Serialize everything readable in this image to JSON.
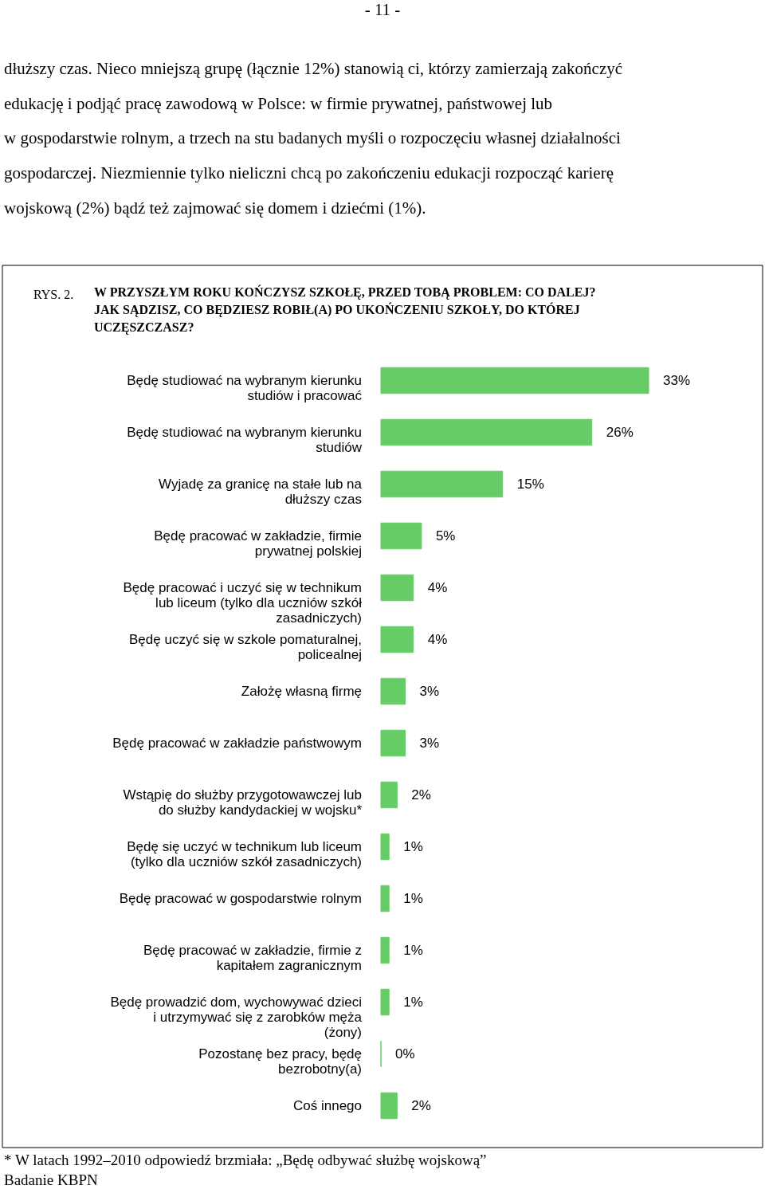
{
  "chart_data": {
    "type": "bar",
    "orientation": "horizontal",
    "color": "#66cc66",
    "title": "W PRZYSZŁYM ROKU KOŃCZYSZ SZKOŁĘ, PRZED TOBĄ PROBLEM: CO DALEJ? JAK SĄDZISZ, CO BĘDZIESZ ROBIŁ(A) PO UKOŃCZENIU SZKOŁY, DO KTÓREJ UCZĘSZCZASZ?",
    "categories": [
      "Będę studiować na wybranym kierunku studiów i pracować",
      "Będę studiować na wybranym kierunku studiów",
      "Wyjadę za granicę na stałe lub na dłuższy czas",
      "Będę pracować w zakładzie, firmie prywatnej polskiej",
      "Będę pracować i uczyć się w technikum lub liceum (tylko dla uczniów szkół zasadniczych)",
      "Będę uczyć się w szkole pomaturalnej, policealnej",
      "Założę własną firmę",
      "Będę pracować w zakładzie państwowym",
      "Wstąpię do służby przygotowawczej lub do służby kandydackiej w wojsku*",
      "Będę się uczyć w technikum  lub liceum (tylko dla uczniów szkół zasadniczych)",
      "Będę pracować w gospodarstwie rolnym",
      "Będę pracować w zakładzie, firmie z kapitałem zagranicznym",
      "Będę prowadzić dom, wychowywać dzieci i utrzymywać się z zarobków męża (żony)",
      "Pozostanę bez pracy, będę bezrobotny(a)",
      "Coś innego"
    ],
    "values": [
      33,
      26,
      15,
      5,
      4,
      4,
      3,
      3,
      2,
      1,
      1,
      1,
      1,
      0,
      2
    ],
    "value_labels": [
      "33%",
      "26%",
      "15%",
      "5%",
      "4%",
      "4%",
      "3%",
      "3%",
      "2%",
      "1%",
      "1%",
      "1%",
      "1%",
      "0%",
      "2%"
    ],
    "annotations": [
      "- 11 -",
      "dłuższy czas. Nieco mniejszą grupę (łącznie 12%) stanowią ci, którzy zamierzają zakończyć",
      "edukację i podjąć pracę zawodową w Polsce: w firmie prywatnej, państwowej lub",
      "w gospodarstwie rolnym, a trzech na stu badanych myśli o rozpoczęciu własnej działalności",
      "gospodarczej. Niezmiennie tylko nieliczni chcą po zakończeniu edukacji rozpocząć karierę",
      "wojskową (2%) bądź też zajmować się domem i dziećmi (1%).",
      "RYS. 2.",
      "* W latach 1992–2010 odpowiedź brzmiała: „Będę odbywać służbę wojskową”",
      "Badanie KBPN"
    ]
  }
}
